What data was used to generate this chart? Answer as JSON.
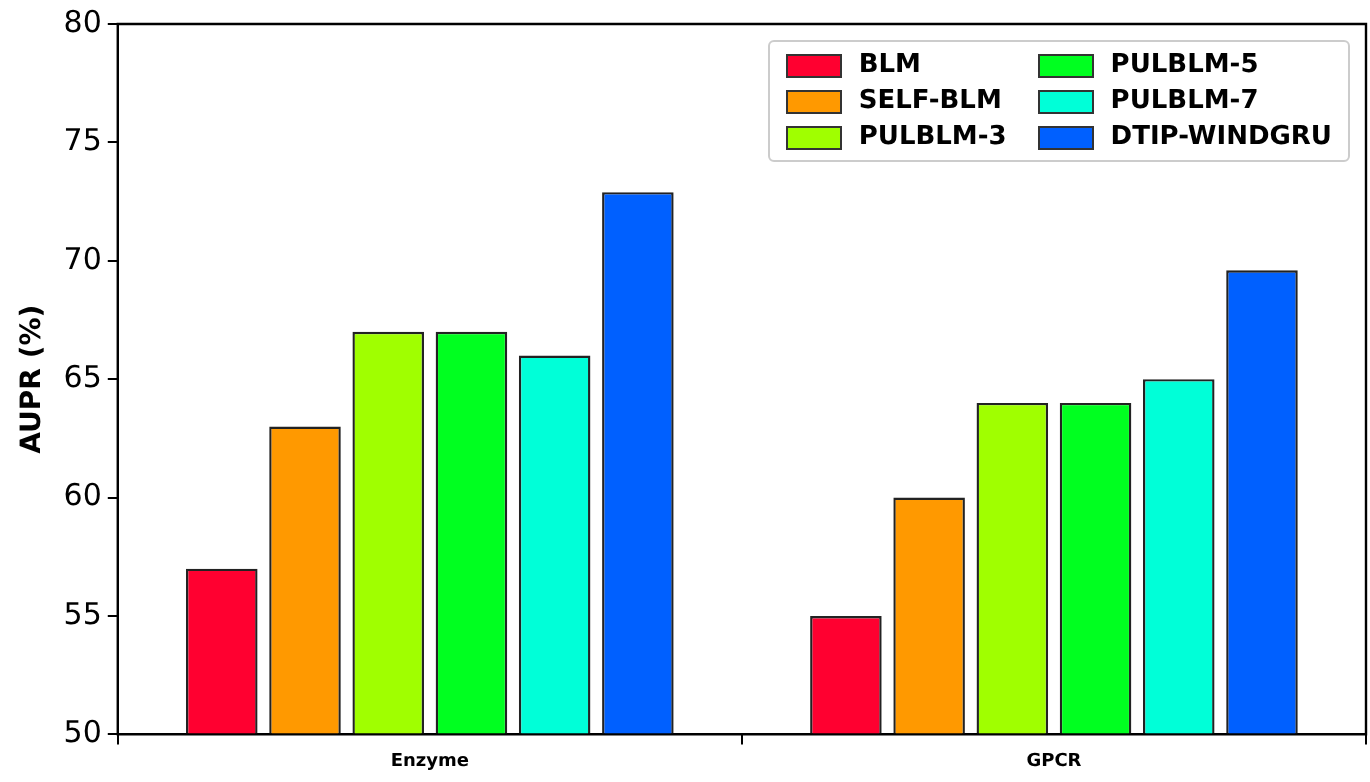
{
  "chart_data": {
    "type": "bar",
    "ylabel": "AUPR (%)",
    "categories": [
      "Enzyme",
      "GPCR"
    ],
    "series": [
      {
        "name": "BLM",
        "color": "#ff0030",
        "values": [
          57,
          55
        ]
      },
      {
        "name": "SELF-BLM",
        "color": "#ff9900",
        "values": [
          63,
          60
        ]
      },
      {
        "name": "PULBLM-3",
        "color": "#a0ff00",
        "values": [
          67,
          64
        ]
      },
      {
        "name": "PULBLM-5",
        "color": "#00ff20",
        "values": [
          67,
          64
        ]
      },
      {
        "name": "PULBLM-7",
        "color": "#00ffd8",
        "values": [
          66,
          65
        ]
      },
      {
        "name": "DTIP-WINDGRU",
        "color": "#0060ff",
        "values": [
          72.9,
          69.6
        ]
      }
    ],
    "ylim": [
      50,
      80
    ],
    "yticks": [
      50,
      55,
      60,
      65,
      70,
      75,
      80
    ],
    "grid": false,
    "legend": "top right"
  }
}
